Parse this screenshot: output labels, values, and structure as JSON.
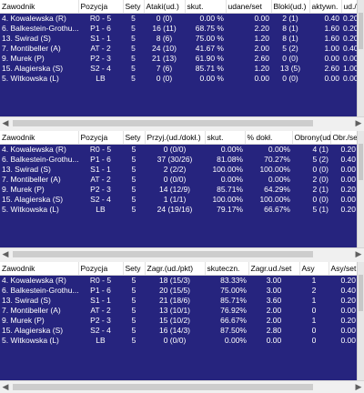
{
  "panel1": {
    "headers": [
      "Zawodnik",
      "Pozycja",
      "Sety",
      "Ataki(ud.)",
      "skut.",
      "udane/set",
      "Bloki(ud.)",
      "aktywn.",
      "ud./se"
    ],
    "rows": [
      [
        "4. Kowalewska (R)",
        "R0 - 5",
        "5",
        "0 (0)",
        "0.00 %",
        "0.00",
        "2 (1)",
        "0.40",
        "0.20"
      ],
      [
        "6. Balkestein-Grothu...",
        "P1 - 6",
        "5",
        "16 (11)",
        "68.75 %",
        "2.20",
        "8 (1)",
        "1.60",
        "0.20"
      ],
      [
        "13. Swirad (S)",
        "S1 - 1",
        "5",
        "8 (6)",
        "75.00 %",
        "1.20",
        "8 (1)",
        "1.60",
        "0.20"
      ],
      [
        "7. Montibeller (A)",
        "AT - 2",
        "5",
        "24 (10)",
        "41.67 %",
        "2.00",
        "5 (2)",
        "1.00",
        "0.40"
      ],
      [
        "9. Murek (P)",
        "P2 - 3",
        "5",
        "21 (13)",
        "61.90 %",
        "2.60",
        "0 (0)",
        "0.00",
        "0.00"
      ],
      [
        "15. Alagierska (S)",
        "S2 - 4",
        "5",
        "7 (6)",
        "85.71 %",
        "1.20",
        "13 (5)",
        "2.60",
        "1.00"
      ],
      [
        "5. Witkowska (L)",
        "LB",
        "5",
        "0 (0)",
        "0.00 %",
        "0.00",
        "0 (0)",
        "0.00",
        "0.00"
      ]
    ]
  },
  "panel2": {
    "headers": [
      "Zawodnik",
      "Pozycja",
      "Sety",
      "Przyj.(ud./dokł.)",
      "skut.",
      "% dokł.",
      "Obrony(ud.)",
      "Obr./se"
    ],
    "rows": [
      [
        "4. Kowalewska (R)",
        "R0 - 5",
        "5",
        "0 (0/0)",
        "0.00%",
        "0.00%",
        "4 (1)",
        "0.20"
      ],
      [
        "6. Balkestein-Grothu...",
        "P1 - 6",
        "5",
        "37 (30/26)",
        "81.08%",
        "70.27%",
        "5 (2)",
        "0.40"
      ],
      [
        "13. Swirad (S)",
        "S1 - 1",
        "5",
        "2 (2/2)",
        "100.00%",
        "100.00%",
        "0 (0)",
        "0.00"
      ],
      [
        "7. Montibeller (A)",
        "AT - 2",
        "5",
        "0 (0/0)",
        "0.00%",
        "0.00%",
        "2 (0)",
        "0.00"
      ],
      [
        "9. Murek (P)",
        "P2 - 3",
        "5",
        "14 (12/9)",
        "85.71%",
        "64.29%",
        "2 (1)",
        "0.20"
      ],
      [
        "15. Alagierska (S)",
        "S2 - 4",
        "5",
        "1 (1/1)",
        "100.00%",
        "100.00%",
        "0 (0)",
        "0.00"
      ],
      [
        "5. Witkowska (L)",
        "LB",
        "5",
        "24 (19/16)",
        "79.17%",
        "66.67%",
        "5 (1)",
        "0.20"
      ]
    ]
  },
  "panel3": {
    "headers": [
      "Zawodnik",
      "Pozycja",
      "Sety",
      "Zagr.(ud./pkt)",
      "skuteczn.",
      "Zagr.ud./set",
      "Asy",
      "Asy/set"
    ],
    "rows": [
      [
        "4. Kowalewska (R)",
        "R0 - 5",
        "5",
        "18 (15/3)",
        "83.33%",
        "3.00",
        "1",
        "0.20"
      ],
      [
        "6. Balkestein-Grothu...",
        "P1 - 6",
        "5",
        "20 (15/5)",
        "75.00%",
        "3.00",
        "2",
        "0.40"
      ],
      [
        "13. Swirad (S)",
        "S1 - 1",
        "5",
        "21 (18/6)",
        "85.71%",
        "3.60",
        "1",
        "0.20"
      ],
      [
        "7. Montibeller (A)",
        "AT - 2",
        "5",
        "13 (10/1)",
        "76.92%",
        "2.00",
        "0",
        "0.00"
      ],
      [
        "9. Murek (P)",
        "P2 - 3",
        "5",
        "15 (10/2)",
        "66.67%",
        "2.00",
        "1",
        "0.20"
      ],
      [
        "15. Alagierska (S)",
        "S2 - 4",
        "5",
        "16 (14/3)",
        "87.50%",
        "2.80",
        "0",
        "0.00"
      ],
      [
        "5. Witkowska (L)",
        "LB",
        "5",
        "0 (0/0)",
        "0.00%",
        "0.00",
        "0",
        "0.00"
      ]
    ]
  },
  "icons": {
    "left_arrow": "scroll-left-arrow-icon",
    "right_arrow": "scroll-right-arrow-icon"
  },
  "colors": {
    "grid_bg": "#26247e",
    "header_bg": "#ffffff",
    "text": "#ffffff"
  }
}
